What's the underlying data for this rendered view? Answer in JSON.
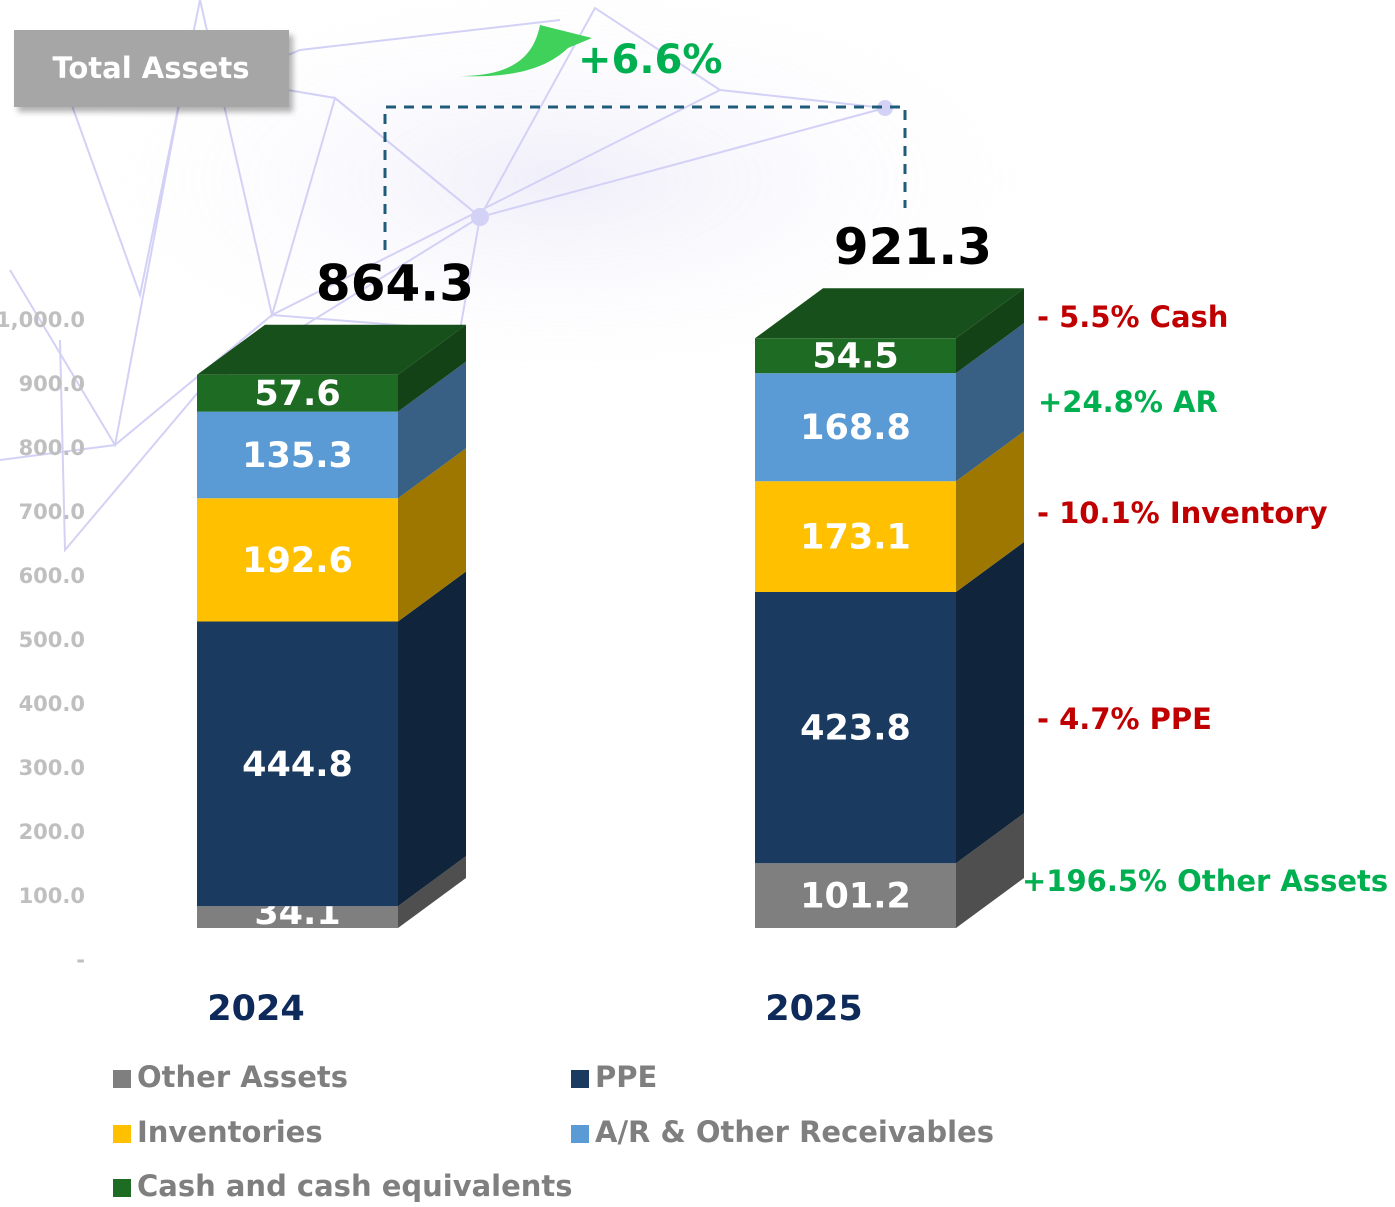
{
  "chart_data": {
    "type": "bar3d_stacked",
    "title": "Total Assets",
    "categories": [
      "2024",
      "2025"
    ],
    "series": [
      {
        "name": "Other Assets",
        "color": "#7f7f7f",
        "values": [
          34.1,
          101.2
        ]
      },
      {
        "name": "PPE",
        "color": "#1a3a5f",
        "values": [
          444.8,
          423.8
        ]
      },
      {
        "name": "Inventories",
        "color": "#ffc000",
        "values": [
          192.6,
          173.1
        ]
      },
      {
        "name": "A/R & Other Receivables",
        "color": "#5b9bd5",
        "values": [
          135.3,
          168.8
        ]
      },
      {
        "name": "Cash and cash equivalents",
        "color": "#1e6b24",
        "values": [
          57.6,
          54.5
        ]
      }
    ],
    "totals": [
      864.3,
      921.3
    ],
    "change_label": "+6.6%",
    "annotations": [
      {
        "text": "- 5.5% Cash",
        "color": "#c00000"
      },
      {
        "text": "+24.8% AR",
        "color": "#00b050"
      },
      {
        "text": "- 10.1% Inventory",
        "color": "#c00000"
      },
      {
        "text": "- 4.7% PPE",
        "color": "#c00000"
      },
      {
        "text": "+196.5% Other Assets",
        "color": "#00b050"
      }
    ],
    "ylim": [
      0,
      1000
    ],
    "yticks": [
      {
        "value": 0,
        "label": "-"
      },
      {
        "value": 100,
        "label": "100.0"
      },
      {
        "value": 200,
        "label": "200.0"
      },
      {
        "value": 300,
        "label": "300.0"
      },
      {
        "value": 400,
        "label": "400.0"
      },
      {
        "value": 500,
        "label": "500.0"
      },
      {
        "value": 600,
        "label": "600.0"
      },
      {
        "value": 700,
        "label": "700.0"
      },
      {
        "value": 800,
        "label": "800.0"
      },
      {
        "value": 900,
        "label": "900.0"
      },
      {
        "value": 1000,
        "label": "1,000.0"
      }
    ]
  }
}
